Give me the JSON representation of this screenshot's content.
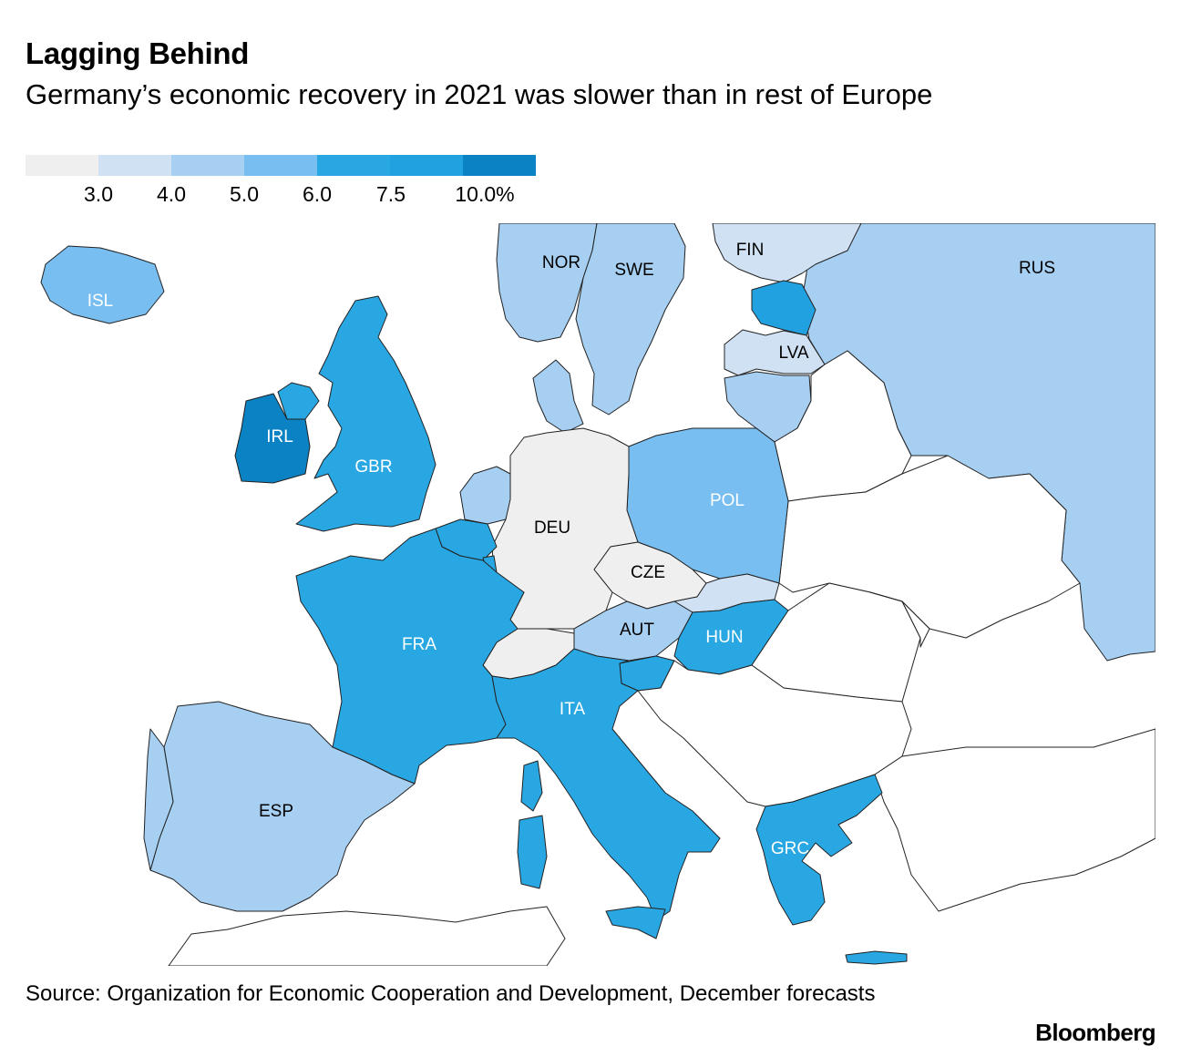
{
  "header": {
    "title": "Lagging Behind",
    "subtitle": "Germany’s economic recovery in 2021 was slower than in rest of Europe"
  },
  "legend": {
    "colors": [
      "#efefef",
      "#cfe1f3",
      "#a7cff2",
      "#79bef0",
      "#29a7e3",
      "#22a1e1",
      "#0a82c4"
    ],
    "labels": [
      "3.0",
      "4.0",
      "5.0",
      "6.0",
      "7.5",
      "10.0%"
    ]
  },
  "map": {
    "countries": [
      {
        "code": "ISL",
        "label": "ISL",
        "label_color": "#ffffff",
        "color": "#79bef0"
      },
      {
        "code": "IRL",
        "label": "IRL",
        "label_color": "#ffffff",
        "color": "#0a82c4"
      },
      {
        "code": "GBR",
        "label": "GBR",
        "label_color": "#ffffff",
        "color": "#29a7e3"
      },
      {
        "code": "NOR",
        "label": "NOR",
        "label_color": "#000000",
        "color": "#a7cff2"
      },
      {
        "code": "SWE",
        "label": "SWE",
        "label_color": "#000000",
        "color": "#a7cff2"
      },
      {
        "code": "FIN",
        "label": "FIN",
        "label_color": "#000000",
        "color": "#cfe1f3"
      },
      {
        "code": "RUS",
        "label": "RUS",
        "label_color": "#000000",
        "color": "#a7cff2"
      },
      {
        "code": "LVA",
        "label": "LVA",
        "label_color": "#000000",
        "color": "#cfe1f3"
      },
      {
        "code": "POL",
        "label": "POL",
        "label_color": "#ffffff",
        "color": "#79bef0"
      },
      {
        "code": "DEU",
        "label": "DEU",
        "label_color": "#000000",
        "color": "#efefef"
      },
      {
        "code": "CZE",
        "label": "CZE",
        "label_color": "#000000",
        "color": "#efefef"
      },
      {
        "code": "AUT",
        "label": "AUT",
        "label_color": "#000000",
        "color": "#a7cff2"
      },
      {
        "code": "HUN",
        "label": "HUN",
        "label_color": "#ffffff",
        "color": "#29a7e3"
      },
      {
        "code": "FRA",
        "label": "FRA",
        "label_color": "#ffffff",
        "color": "#29a7e3"
      },
      {
        "code": "ITA",
        "label": "ITA",
        "label_color": "#ffffff",
        "color": "#29a7e3"
      },
      {
        "code": "ESP",
        "label": "ESP",
        "label_color": "#000000",
        "color": "#a7cff2"
      },
      {
        "code": "GRC",
        "label": "GRC",
        "label_color": "#ffffff",
        "color": "#29a7e3"
      }
    ],
    "unlabeled": [
      {
        "name": "estonia",
        "color": "#22a1e1"
      },
      {
        "name": "lithuania",
        "color": "#a7cff2"
      },
      {
        "name": "denmark",
        "color": "#a7cff2"
      },
      {
        "name": "netherlands",
        "color": "#a7cff2"
      },
      {
        "name": "belgium",
        "color": "#29a7e3"
      },
      {
        "name": "luxembourg",
        "color": "#29a7e3"
      },
      {
        "name": "switzerland",
        "color": "#efefef"
      },
      {
        "name": "slovakia",
        "color": "#cfe1f3"
      },
      {
        "name": "slovenia",
        "color": "#29a7e3"
      },
      {
        "name": "portugal",
        "color": "#a7cff2"
      }
    ],
    "neutral_color": "#ffffff",
    "border_color": "#222222"
  },
  "footer": {
    "source": "Source: Organization for Economic Cooperation and Development, December forecasts",
    "brand": "Bloomberg"
  }
}
